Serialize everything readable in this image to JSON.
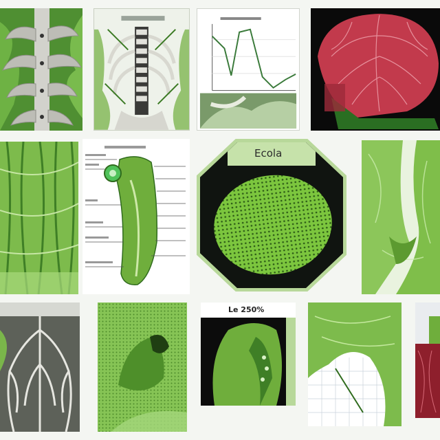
{
  "tiles": {
    "top_row": {
      "chart_panel_title": ""
    },
    "middle_row": {
      "diagram_title": "",
      "octagon_title": "Ecola"
    },
    "bottom_row": {
      "panel_title": "Le 250%"
    }
  },
  "colors": {
    "background": "#f4f6f2",
    "green_light": "#b8d89a",
    "green_mid": "#6fae3c",
    "green_dark": "#2f6b1d",
    "bone": "#cfcfc9",
    "red_tissue": "#c23a4c",
    "black": "#101410"
  }
}
